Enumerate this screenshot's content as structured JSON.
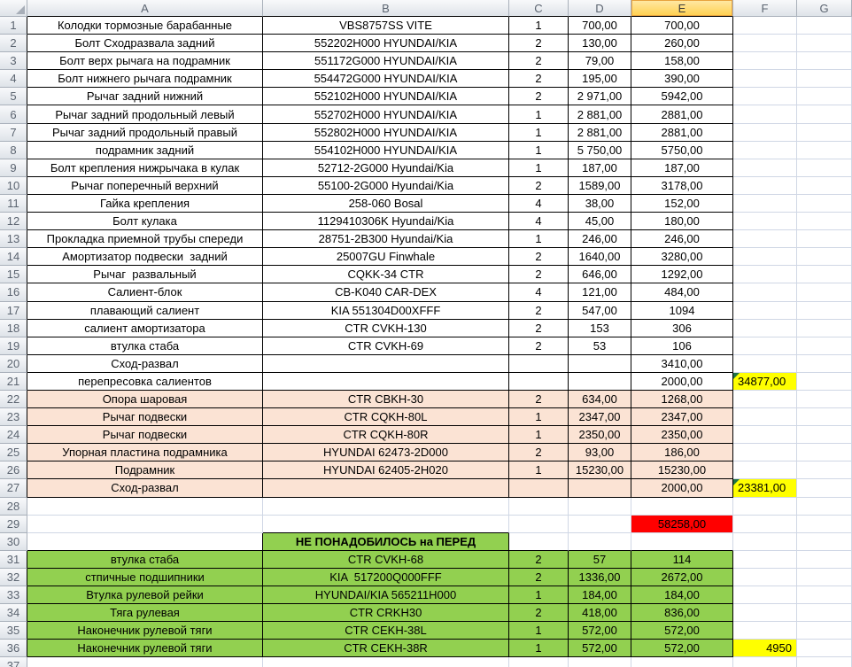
{
  "columns": [
    "A",
    "B",
    "C",
    "D",
    "E",
    "F",
    "G"
  ],
  "selected_column": "E",
  "colors": {
    "grid_line": "#D0D7E5",
    "black_border": "#000000",
    "header_border": "#A9B0BA",
    "peach": "#FBE3D4",
    "green": "#92D050",
    "yellow": "#FFFF00",
    "red": "#FF0000",
    "selected_header_top": "#FFE9A8",
    "selected_header_bottom": "#FFD04E",
    "selected_header_border": "#E8A33E",
    "error_indicator": "#1F7246"
  },
  "rows": [
    {
      "n": "1",
      "band": "plain",
      "cells": {
        "A": "Колодки тормозные барабанные",
        "B": "VBS8757SS VITE",
        "C": "1",
        "D": "700,00",
        "E": "700,00",
        "F": "",
        "G": ""
      }
    },
    {
      "n": "2",
      "band": "plain",
      "cells": {
        "A": "Болт Сходразвала задний",
        "B": "552202H000 HYUNDAI/KIA",
        "C": "2",
        "D": "130,00",
        "E": "260,00",
        "F": "",
        "G": ""
      }
    },
    {
      "n": "3",
      "band": "plain",
      "cells": {
        "A": "Болт верх рычага на подрамник",
        "B": "551172G000 HYUNDAI/KIA",
        "C": "2",
        "D": "79,00",
        "E": "158,00",
        "F": "",
        "G": ""
      }
    },
    {
      "n": "4",
      "band": "plain",
      "cells": {
        "A": "Болт нижнего рычага подрамник",
        "B": "554472G000 HYUNDAI/KIA",
        "C": "2",
        "D": "195,00",
        "E": "390,00",
        "F": "",
        "G": ""
      }
    },
    {
      "n": "5",
      "band": "plain",
      "cells": {
        "A": "Рычаг задний нижний",
        "B": "552102H000 HYUNDAI/KIA",
        "C": "2",
        "D": "2 971,00",
        "E": "5942,00",
        "F": "",
        "G": ""
      }
    },
    {
      "n": "6",
      "band": "plain",
      "cells": {
        "A": "Рычаг задний продольный левый",
        "B": "552702H000 HYUNDAI/KIA",
        "C": "1",
        "D": "2 881,00",
        "E": "2881,00",
        "F": "",
        "G": ""
      }
    },
    {
      "n": "7",
      "band": "plain",
      "cells": {
        "A": "Рычаг задний продольный правый",
        "B": "552802H000 HYUNDAI/KIA",
        "C": "1",
        "D": "2 881,00",
        "E": "2881,00",
        "F": "",
        "G": ""
      }
    },
    {
      "n": "8",
      "band": "plain",
      "cells": {
        "A": "подрамник задний",
        "B": "554102H000 HYUNDAI/KIA",
        "C": "1",
        "D": "5 750,00",
        "E": "5750,00",
        "F": "",
        "G": ""
      }
    },
    {
      "n": "9",
      "band": "plain",
      "cells": {
        "A": "Болт крепления нижрычака в кулак",
        "B": "52712-2G000 Hyundai/Kia",
        "C": "1",
        "D": "187,00",
        "E": "187,00",
        "F": "",
        "G": ""
      }
    },
    {
      "n": "10",
      "band": "plain",
      "cells": {
        "A": "Рычаг поперечный верхний",
        "B": "55100-2G000 Hyundai/Kia",
        "C": "2",
        "D": "1589,00",
        "E": "3178,00",
        "F": "",
        "G": ""
      }
    },
    {
      "n": "11",
      "band": "plain",
      "cells": {
        "A": "Гайка крепления",
        "B": "258-060 Bosal",
        "C": "4",
        "D": "38,00",
        "E": "152,00",
        "F": "",
        "G": ""
      }
    },
    {
      "n": "12",
      "band": "plain",
      "cells": {
        "A": "Болт кулака",
        "B": "1129410306K Hyundai/Kia",
        "C": "4",
        "D": "45,00",
        "E": "180,00",
        "F": "",
        "G": ""
      }
    },
    {
      "n": "13",
      "band": "plain",
      "cells": {
        "A": "Прокладка приемной трубы спереди",
        "B": "28751-2B300 Hyundai/Kia",
        "C": "1",
        "D": "246,00",
        "E": "246,00",
        "F": "",
        "G": ""
      }
    },
    {
      "n": "14",
      "band": "plain",
      "cells": {
        "A": "Амортизатор подвески  задний",
        "B": "25007GU Finwhale",
        "C": "2",
        "D": "1640,00",
        "E": "3280,00",
        "F": "",
        "G": ""
      }
    },
    {
      "n": "15",
      "band": "plain",
      "cells": {
        "A": "Рычаг  развальный",
        "B": "CQKK-34 CTR",
        "C": "2",
        "D": "646,00",
        "E": "1292,00",
        "F": "",
        "G": ""
      }
    },
    {
      "n": "16",
      "band": "plain",
      "cells": {
        "A": "Салиент-блок",
        "B": "CB-K040 CAR-DEX",
        "C": "4",
        "D": "121,00",
        "E": "484,00",
        "F": "",
        "G": ""
      }
    },
    {
      "n": "17",
      "band": "plain",
      "cells": {
        "A": "плавающий салиент",
        "B": "KIA 551304D00XFFF",
        "C": "2",
        "D": "547,00",
        "E": "1094",
        "F": "",
        "G": ""
      }
    },
    {
      "n": "18",
      "band": "plain",
      "cells": {
        "A": "салиент амортизатора",
        "B": "CTR CVKH-130",
        "C": "2",
        "D": "153",
        "E": "306",
        "F": "",
        "G": ""
      }
    },
    {
      "n": "19",
      "band": "plain",
      "cells": {
        "A": "втулка стаба",
        "B": "CTR CVKH-69",
        "C": "2",
        "D": "53",
        "E": "106",
        "F": "",
        "G": ""
      }
    },
    {
      "n": "20",
      "band": "plain",
      "cells": {
        "A": "Сход-развал",
        "B": "",
        "C": "",
        "D": "",
        "E": "3410,00",
        "F": "",
        "G": ""
      }
    },
    {
      "n": "21",
      "band": "plain",
      "cells": {
        "A": "перепресовка салиентов",
        "B": "",
        "C": "",
        "D": "",
        "E": "2000,00",
        "F": "34877,00",
        "G": ""
      },
      "hl": {
        "F": {
          "fill": "yellow",
          "align": "left",
          "error": true
        }
      }
    },
    {
      "n": "22",
      "band": "peach",
      "cells": {
        "A": "Опора шаровая",
        "B": "CTR CBKH-30",
        "C": "2",
        "D": "634,00",
        "E": "1268,00",
        "F": "",
        "G": ""
      }
    },
    {
      "n": "23",
      "band": "peach",
      "cells": {
        "A": "Рычаг подвески",
        "B": "CTR CQKH-80L",
        "C": "1",
        "D": "2347,00",
        "E": "2347,00",
        "F": "",
        "G": ""
      }
    },
    {
      "n": "24",
      "band": "peach",
      "cells": {
        "A": "Рычаг подвески",
        "B": "CTR CQKH-80R",
        "C": "1",
        "D": "2350,00",
        "E": "2350,00",
        "F": "",
        "G": ""
      }
    },
    {
      "n": "25",
      "band": "peach",
      "cells": {
        "A": "Упорная пластина подрамника",
        "B": "HYUNDAI 62473-2D000",
        "C": "2",
        "D": "93,00",
        "E": "186,00",
        "F": "",
        "G": ""
      }
    },
    {
      "n": "26",
      "band": "peach",
      "cells": {
        "A": "Подрамник",
        "B": "HYUNDAI 62405-2H020",
        "C": "1",
        "D": "15230,00",
        "E": "15230,00",
        "F": "",
        "G": ""
      }
    },
    {
      "n": "27",
      "band": "peach",
      "cells": {
        "A": "Сход-развал",
        "B": "",
        "C": "",
        "D": "",
        "E": "2000,00",
        "F": "23381,00",
        "G": ""
      },
      "hl": {
        "F": {
          "fill": "yellow",
          "align": "left",
          "error": true
        }
      }
    },
    {
      "n": "28",
      "band": "blank",
      "cells": {
        "A": "",
        "B": "",
        "C": "",
        "D": "",
        "E": "",
        "F": "",
        "G": ""
      }
    },
    {
      "n": "29",
      "band": "blank",
      "cells": {
        "A": "",
        "B": "",
        "C": "",
        "D": "",
        "E": "58258,00",
        "F": "",
        "G": ""
      },
      "hl": {
        "E": {
          "fill": "red"
        }
      }
    },
    {
      "n": "30",
      "band": "label",
      "cells": {
        "A": "",
        "B": "НЕ ПОНАДОБИЛОСЬ на ПЕРЕД",
        "C": "",
        "D": "",
        "E": "",
        "F": "",
        "G": ""
      }
    },
    {
      "n": "31",
      "band": "green",
      "cells": {
        "A": "втулка стаба",
        "B": "CTR CVKH-68",
        "C": "2",
        "D": "57",
        "E": "114",
        "F": "",
        "G": ""
      }
    },
    {
      "n": "32",
      "band": "green",
      "cells": {
        "A": "стпичные подшипники",
        "B": "KIA  517200Q000FFF",
        "C": "2",
        "D": "1336,00",
        "E": "2672,00",
        "F": "",
        "G": ""
      }
    },
    {
      "n": "33",
      "band": "green",
      "cells": {
        "A": "Втулка рулевой рейки",
        "B": "HYUNDAI/KIA 565211H000",
        "C": "1",
        "D": "184,00",
        "E": "184,00",
        "F": "",
        "G": ""
      }
    },
    {
      "n": "34",
      "band": "green",
      "cells": {
        "A": "Тяга рулевая",
        "B": "CTR CRKH30",
        "C": "2",
        "D": "418,00",
        "E": "836,00",
        "F": "",
        "G": ""
      }
    },
    {
      "n": "35",
      "band": "green",
      "cells": {
        "A": "Наконечник рулевой тяги",
        "B": "CTR CEKH-38L",
        "C": "1",
        "D": "572,00",
        "E": "572,00",
        "F": "",
        "G": ""
      }
    },
    {
      "n": "36",
      "band": "green",
      "cells": {
        "A": "Наконечник рулевой тяги",
        "B": "CTR CEKH-38R",
        "C": "1",
        "D": "572,00",
        "E": "572,00",
        "F": "4950",
        "G": ""
      },
      "hl": {
        "F": {
          "fill": "yellow",
          "align": "right"
        }
      }
    },
    {
      "n": "37",
      "band": "blank",
      "cells": {
        "A": "",
        "B": "",
        "C": "",
        "D": "",
        "E": "",
        "F": "",
        "G": ""
      }
    }
  ]
}
